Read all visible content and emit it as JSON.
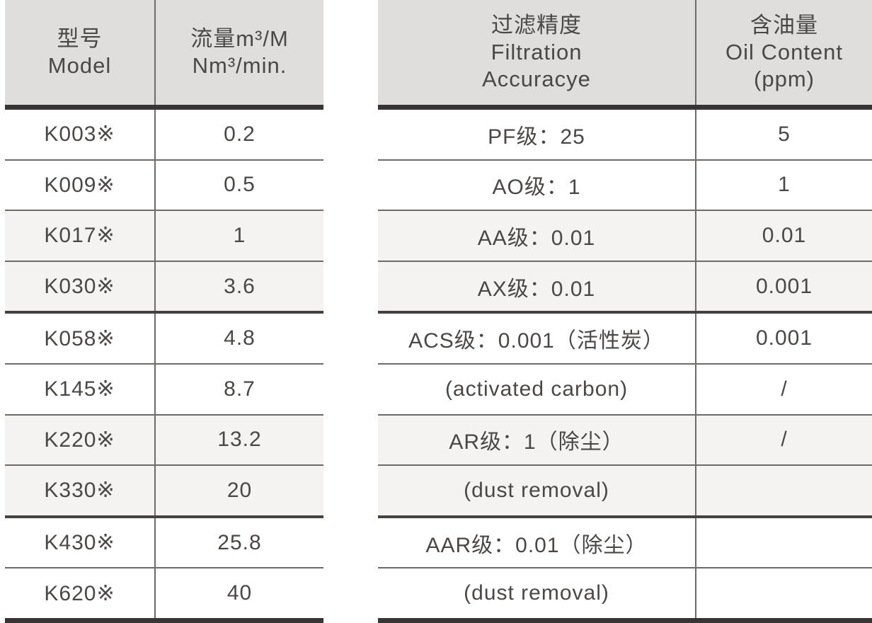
{
  "colors": {
    "header_bg": "#dfdedd",
    "row_shade_bg": "#f4f3f1",
    "thick_rule": "#393534",
    "thin_rule": "#6e6a68",
    "group_rule": "#45413f",
    "text": "#4b4745"
  },
  "left_table": {
    "header": {
      "model_zh": "型号",
      "model_en": "Model",
      "flow_zh": "流量m³/M",
      "flow_en": "Nm³/min."
    },
    "rows": [
      {
        "model": "K003※",
        "flow": "0.2"
      },
      {
        "model": "K009※",
        "flow": "0.5"
      },
      {
        "model": "K017※",
        "flow": "1"
      },
      {
        "model": "K030※",
        "flow": "3.6"
      },
      {
        "model": "K058※",
        "flow": "4.8"
      },
      {
        "model": "K145※",
        "flow": "8.7"
      },
      {
        "model": "K220※",
        "flow": "13.2"
      },
      {
        "model": "K330※",
        "flow": "20"
      },
      {
        "model": "K430※",
        "flow": "25.8"
      },
      {
        "model": "K620※",
        "flow": "40"
      }
    ]
  },
  "right_table": {
    "header": {
      "filtration_zh": "过滤精度",
      "filtration_en1": "Filtration",
      "filtration_en2": "Accuracye",
      "oil_zh": "含油量",
      "oil_en": "Oil Content",
      "oil_unit": "(ppm)"
    },
    "rows": [
      {
        "grade": "PF级：25",
        "oil": "5"
      },
      {
        "grade": "AO级：1",
        "oil": "1"
      },
      {
        "grade": "AA级：0.01",
        "oil": "0.01"
      },
      {
        "grade": "AX级：0.01",
        "oil": "0.001"
      },
      {
        "grade": "ACS级：0.001（活性炭）",
        "oil": "0.001"
      },
      {
        "grade": "(activated carbon)",
        "oil": "/"
      },
      {
        "grade": "AR级：1（除尘）",
        "oil": "/"
      },
      {
        "grade": "(dust removal)",
        "oil": ""
      },
      {
        "grade": "AAR级：0.01（除尘）",
        "oil": ""
      },
      {
        "grade": "(dust removal)",
        "oil": ""
      }
    ]
  }
}
